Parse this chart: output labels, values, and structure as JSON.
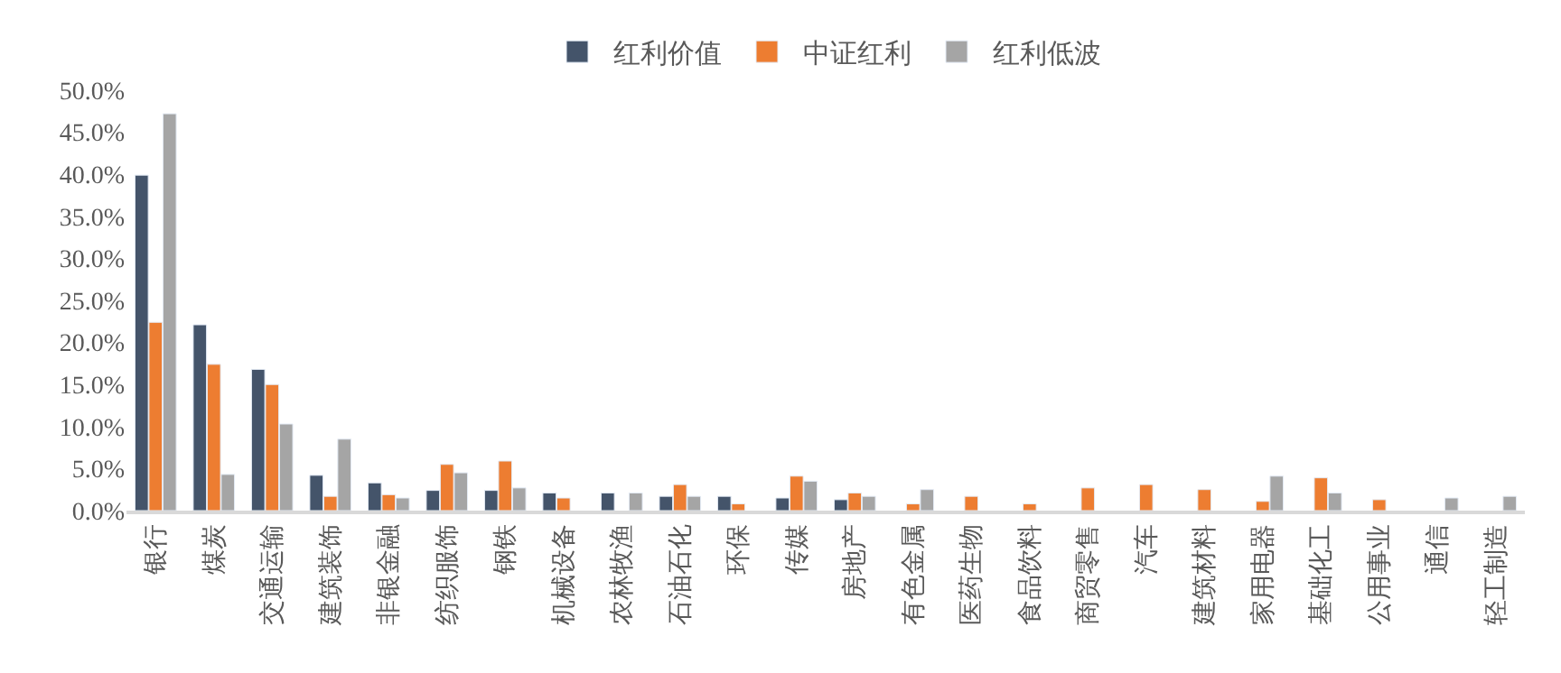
{
  "chart_data": {
    "type": "bar",
    "categories": [
      "银行",
      "煤炭",
      "交通运输",
      "建筑装饰",
      "非银金融",
      "纺织服饰",
      "钢铁",
      "机械设备",
      "农林牧渔",
      "石油石化",
      "环保",
      "传媒",
      "房地产",
      "有色金属",
      "医药生物",
      "食品饮料",
      "商贸零售",
      "汽车",
      "建筑材料",
      "家用电器",
      "基础化工",
      "公用事业",
      "通信",
      "轻工制造"
    ],
    "series": [
      {
        "name": "红利价值",
        "color": "#44546a",
        "values": [
          39.9,
          22.1,
          16.8,
          4.2,
          3.3,
          2.4,
          2.4,
          2.1,
          2.1,
          1.7,
          1.7,
          1.5,
          1.3,
          null,
          null,
          null,
          null,
          null,
          null,
          null,
          null,
          null,
          null,
          null
        ]
      },
      {
        "name": "中证红利",
        "color": "#ed7d31",
        "values": [
          22.4,
          17.4,
          15.0,
          1.7,
          1.9,
          5.5,
          5.9,
          1.5,
          null,
          3.1,
          0.8,
          4.1,
          2.1,
          0.8,
          1.7,
          0.8,
          2.7,
          3.1,
          2.5,
          1.1,
          3.9,
          1.3,
          null,
          null
        ]
      },
      {
        "name": "红利低波",
        "color": "#a5a5a5",
        "values": [
          47.2,
          4.3,
          10.3,
          8.5,
          1.5,
          4.5,
          2.7,
          null,
          2.1,
          1.7,
          null,
          3.5,
          1.7,
          2.5,
          null,
          null,
          null,
          null,
          null,
          4.1,
          2.1,
          null,
          1.5,
          1.7
        ]
      }
    ],
    "ylim": [
      0,
      50
    ],
    "yticks": [
      {
        "value": 0,
        "label": "0.0%"
      },
      {
        "value": 5,
        "label": "5.0%"
      },
      {
        "value": 10,
        "label": "10.0%"
      },
      {
        "value": 15,
        "label": "15.0%"
      },
      {
        "value": 20,
        "label": "20.0%"
      },
      {
        "value": 25,
        "label": "25.0%"
      },
      {
        "value": 30,
        "label": "30.0%"
      },
      {
        "value": 35,
        "label": "35.0%"
      },
      {
        "value": 40,
        "label": "40.0%"
      },
      {
        "value": 45,
        "label": "45.0%"
      },
      {
        "value": 50,
        "label": "50.0%"
      }
    ],
    "legend": "top"
  }
}
